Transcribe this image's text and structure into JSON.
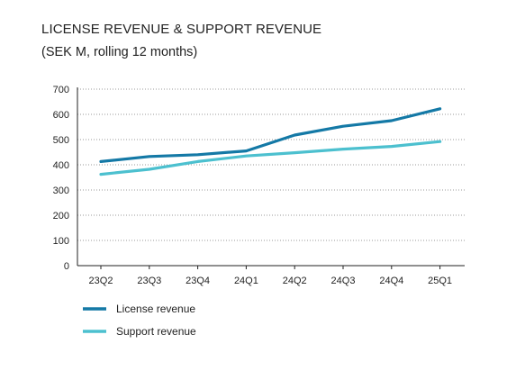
{
  "chart_data": {
    "type": "line",
    "title": "LICENSE REVENUE & SUPPORT REVENUE",
    "subtitle": "(SEK M, rolling 12 months)",
    "xlabel": "",
    "ylabel": "",
    "categories": [
      "23Q2",
      "23Q3",
      "23Q4",
      "24Q1",
      "24Q2",
      "24Q3",
      "24Q4",
      "25Q1"
    ],
    "ylim": [
      0,
      700
    ],
    "yticks": [
      0,
      100,
      200,
      300,
      400,
      500,
      600,
      700
    ],
    "grid": true,
    "legend_position": "bottom-left",
    "series": [
      {
        "name": "License revenue",
        "color": "#1479a6",
        "values": [
          413,
          433,
          440,
          455,
          518,
          553,
          575,
          622
        ]
      },
      {
        "name": "Support revenue",
        "color": "#4cc0cf",
        "values": [
          362,
          382,
          413,
          435,
          448,
          462,
          473,
          492
        ]
      }
    ]
  }
}
